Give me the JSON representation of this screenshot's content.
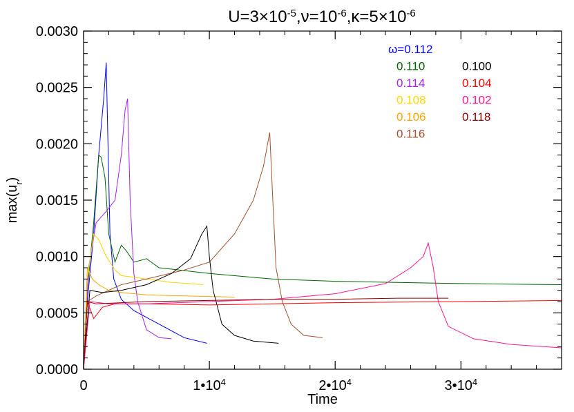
{
  "chart_data": {
    "type": "line",
    "title": {
      "base": "U=3×10",
      "exp1": "-5",
      "mid1": ",ν=10",
      "exp2": "-6",
      "mid2": ",κ=5×10",
      "exp3": "-6"
    },
    "xlabel": "Time",
    "ylabel": {
      "base": "max(u",
      "sub": "r",
      "tail": ")"
    },
    "xlim": [
      0,
      38000
    ],
    "ylim": [
      0,
      0.003
    ],
    "x_ticks": [
      {
        "value": 0,
        "label": "0"
      },
      {
        "value": 10000,
        "label": "1•10",
        "exp": "4"
      },
      {
        "value": 20000,
        "label": "2•10",
        "exp": "4"
      },
      {
        "value": 30000,
        "label": "3•10",
        "exp": "4"
      }
    ],
    "y_ticks": [
      {
        "value": 0,
        "label": "0.0000"
      },
      {
        "value": 0.0005,
        "label": "0.0005"
      },
      {
        "value": 0.001,
        "label": "0.0010"
      },
      {
        "value": 0.0015,
        "label": "0.0015"
      },
      {
        "value": 0.002,
        "label": "0.0020"
      },
      {
        "value": 0.0025,
        "label": "0.0025"
      },
      {
        "value": 0.003,
        "label": "0.0030"
      }
    ],
    "grid": false,
    "legend_position": "top-right",
    "series": [
      {
        "name": "ω=0.112",
        "color": "#0000ff",
        "points": [
          [
            0,
            0
          ],
          [
            300,
            0.0006
          ],
          [
            800,
            0.0012
          ],
          [
            1200,
            0.0019
          ],
          [
            1600,
            0.0024
          ],
          [
            1800,
            0.00272
          ],
          [
            1900,
            0.0022
          ],
          [
            2100,
            0.0012
          ],
          [
            2400,
            0.0008
          ],
          [
            3000,
            0.00062
          ],
          [
            4000,
            0.00052
          ],
          [
            6000,
            0.0004
          ],
          [
            8000,
            0.00028
          ],
          [
            9800,
            0.00023
          ]
        ]
      },
      {
        "name": "0.110",
        "color": "#006400",
        "points": [
          [
            0,
            0
          ],
          [
            300,
            0.0007
          ],
          [
            800,
            0.0013
          ],
          [
            1200,
            0.0019
          ],
          [
            1400,
            0.00188
          ],
          [
            1700,
            0.0017
          ],
          [
            2000,
            0.0012
          ],
          [
            2500,
            0.00095
          ],
          [
            3000,
            0.0011
          ],
          [
            3400,
            0.00105
          ],
          [
            4000,
            0.00095
          ],
          [
            5000,
            0.00098
          ],
          [
            6000,
            0.0009
          ],
          [
            10000,
            0.00085
          ],
          [
            15000,
            0.0008
          ],
          [
            20000,
            0.00078
          ],
          [
            30000,
            0.00076
          ],
          [
            38000,
            0.00075
          ]
        ]
      },
      {
        "name": "0.114",
        "color": "#a020f0",
        "points": [
          [
            0,
            0
          ],
          [
            400,
            0.0009
          ],
          [
            1000,
            0.0013
          ],
          [
            1800,
            0.0014
          ],
          [
            2500,
            0.0015
          ],
          [
            3000,
            0.0019
          ],
          [
            3300,
            0.0023
          ],
          [
            3500,
            0.0024
          ],
          [
            3700,
            0.0015
          ],
          [
            4000,
            0.00085
          ],
          [
            4300,
            0.0006
          ],
          [
            5000,
            0.00035
          ],
          [
            6000,
            0.00028
          ],
          [
            7000,
            0.00027
          ]
        ]
      },
      {
        "name": "0.108",
        "color": "#ffd700",
        "points": [
          [
            0,
            0
          ],
          [
            300,
            0.0008
          ],
          [
            800,
            0.0012
          ],
          [
            1200,
            0.00115
          ],
          [
            1800,
            0.001
          ],
          [
            2500,
            0.00088
          ],
          [
            3000,
            0.00083
          ],
          [
            5000,
            0.0008
          ],
          [
            7000,
            0.00077
          ],
          [
            9500,
            0.00075
          ]
        ]
      },
      {
        "name": "0.106",
        "color": "#ffa500",
        "points": [
          [
            0,
            0
          ],
          [
            300,
            0.0009
          ],
          [
            700,
            0.0008
          ],
          [
            1200,
            0.00075
          ],
          [
            2000,
            0.0007
          ],
          [
            3000,
            0.00068
          ],
          [
            5000,
            0.00066
          ],
          [
            8000,
            0.00065
          ],
          [
            12000,
            0.00064
          ]
        ]
      },
      {
        "name": "0.116",
        "color": "#a0522d",
        "points": [
          [
            0,
            0
          ],
          [
            300,
            0.0006
          ],
          [
            1000,
            0.00065
          ],
          [
            2000,
            0.0007
          ],
          [
            3000,
            0.00075
          ],
          [
            5000,
            0.0008
          ],
          [
            8000,
            0.00088
          ],
          [
            10000,
            0.00095
          ],
          [
            12000,
            0.0012
          ],
          [
            13500,
            0.0015
          ],
          [
            14300,
            0.0018
          ],
          [
            14800,
            0.0021
          ],
          [
            15000,
            0.0016
          ],
          [
            15300,
            0.0009
          ],
          [
            15800,
            0.0006
          ],
          [
            16500,
            0.0004
          ],
          [
            17500,
            0.0003
          ],
          [
            19000,
            0.00028
          ]
        ]
      },
      {
        "name": "0.100",
        "color": "#000000",
        "points": [
          [
            0,
            0
          ],
          [
            500,
            0.0007
          ],
          [
            1500,
            0.00068
          ],
          [
            3000,
            0.0007
          ],
          [
            5000,
            0.00075
          ],
          [
            7000,
            0.00085
          ],
          [
            8500,
            0.00098
          ],
          [
            9400,
            0.0012
          ],
          [
            9800,
            0.00127
          ],
          [
            10000,
            0.001
          ],
          [
            10300,
            0.0007
          ],
          [
            11000,
            0.0004
          ],
          [
            12000,
            0.0003
          ],
          [
            13500,
            0.00025
          ],
          [
            15500,
            0.00023
          ]
        ]
      },
      {
        "name": "0.104",
        "color": "#ff0000",
        "points": [
          [
            0,
            0
          ],
          [
            300,
            0.0006
          ],
          [
            800,
            0.00045
          ],
          [
            1500,
            0.00055
          ],
          [
            2500,
            0.00058
          ],
          [
            5000,
            0.00058
          ],
          [
            10000,
            0.00057
          ],
          [
            20000,
            0.00059
          ],
          [
            30000,
            0.0006
          ],
          [
            38000,
            0.00061
          ]
        ]
      },
      {
        "name": "0.102",
        "color": "#ff1493",
        "points": [
          [
            0,
            0
          ],
          [
            500,
            0.0006
          ],
          [
            2000,
            0.00058
          ],
          [
            5000,
            0.00058
          ],
          [
            10000,
            0.0006
          ],
          [
            15000,
            0.00062
          ],
          [
            20000,
            0.00067
          ],
          [
            24000,
            0.00076
          ],
          [
            26000,
            0.0009
          ],
          [
            27000,
            0.001
          ],
          [
            27400,
            0.00112
          ],
          [
            27800,
            0.0009
          ],
          [
            28200,
            0.0006
          ],
          [
            29000,
            0.00038
          ],
          [
            31000,
            0.00027
          ],
          [
            34000,
            0.00022
          ],
          [
            38000,
            0.00019
          ]
        ]
      },
      {
        "name": "0.118",
        "color": "#8b0000",
        "points": [
          [
            0,
            0
          ],
          [
            300,
            0.0006
          ],
          [
            1000,
            0.00058
          ],
          [
            5000,
            0.0006
          ],
          [
            10000,
            0.00061
          ],
          [
            15000,
            0.00062
          ],
          [
            20000,
            0.00062
          ],
          [
            25000,
            0.00063
          ],
          [
            29000,
            0.00063
          ]
        ]
      }
    ]
  }
}
